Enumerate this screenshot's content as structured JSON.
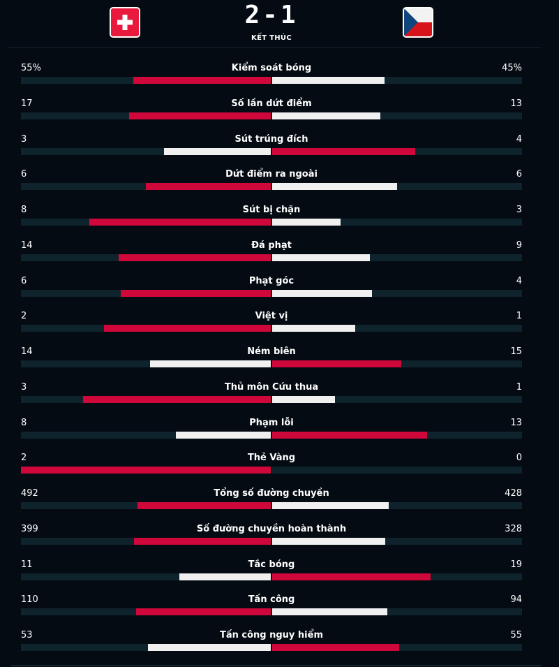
{
  "match": {
    "home_team_flag": "switzerland-flag",
    "away_team_flag": "czech-republic-flag",
    "score": "2-1",
    "status": "KẾT THÚC"
  },
  "colors": {
    "background": "#040b12",
    "track": "#0f232c",
    "winner": "#d0073b",
    "other": "#f0f0f0"
  },
  "stats": [
    {
      "label": "Kiểm soát bóng",
      "home": "55%",
      "away": "45%",
      "home_value": 55,
      "away_value": 45
    },
    {
      "label": "Số lần dứt điểm",
      "home": "17",
      "away": "13",
      "home_value": 17,
      "away_value": 13
    },
    {
      "label": "Sút trúng đích",
      "home": "3",
      "away": "4",
      "home_value": 3,
      "away_value": 4
    },
    {
      "label": "Dứt điểm ra ngoài",
      "home": "6",
      "away": "6",
      "home_value": 6,
      "away_value": 6
    },
    {
      "label": "Sút bị chặn",
      "home": "8",
      "away": "3",
      "home_value": 8,
      "away_value": 3
    },
    {
      "label": "Đá phạt",
      "home": "14",
      "away": "9",
      "home_value": 14,
      "away_value": 9
    },
    {
      "label": "Phạt góc",
      "home": "6",
      "away": "4",
      "home_value": 6,
      "away_value": 4
    },
    {
      "label": "Việt vị",
      "home": "2",
      "away": "1",
      "home_value": 2,
      "away_value": 1
    },
    {
      "label": "Ném biên",
      "home": "14",
      "away": "15",
      "home_value": 14,
      "away_value": 15
    },
    {
      "label": "Thủ môn Cứu thua",
      "home": "3",
      "away": "1",
      "home_value": 3,
      "away_value": 1
    },
    {
      "label": "Phạm lỗi",
      "home": "8",
      "away": "13",
      "home_value": 8,
      "away_value": 13
    },
    {
      "label": "Thẻ Vàng",
      "home": "2",
      "away": "0",
      "home_value": 2,
      "away_value": 0
    },
    {
      "label": "Tổng số đường chuyền",
      "home": "492",
      "away": "428",
      "home_value": 492,
      "away_value": 428
    },
    {
      "label": "Số đường chuyền hoàn thành",
      "home": "399",
      "away": "328",
      "home_value": 399,
      "away_value": 328
    },
    {
      "label": "Tắc bóng",
      "home": "11",
      "away": "19",
      "home_value": 11,
      "away_value": 19
    },
    {
      "label": "Tấn công",
      "home": "110",
      "away": "94",
      "home_value": 110,
      "away_value": 94
    },
    {
      "label": "Tấn công nguy hiểm",
      "home": "53",
      "away": "55",
      "home_value": 53,
      "away_value": 55
    }
  ]
}
